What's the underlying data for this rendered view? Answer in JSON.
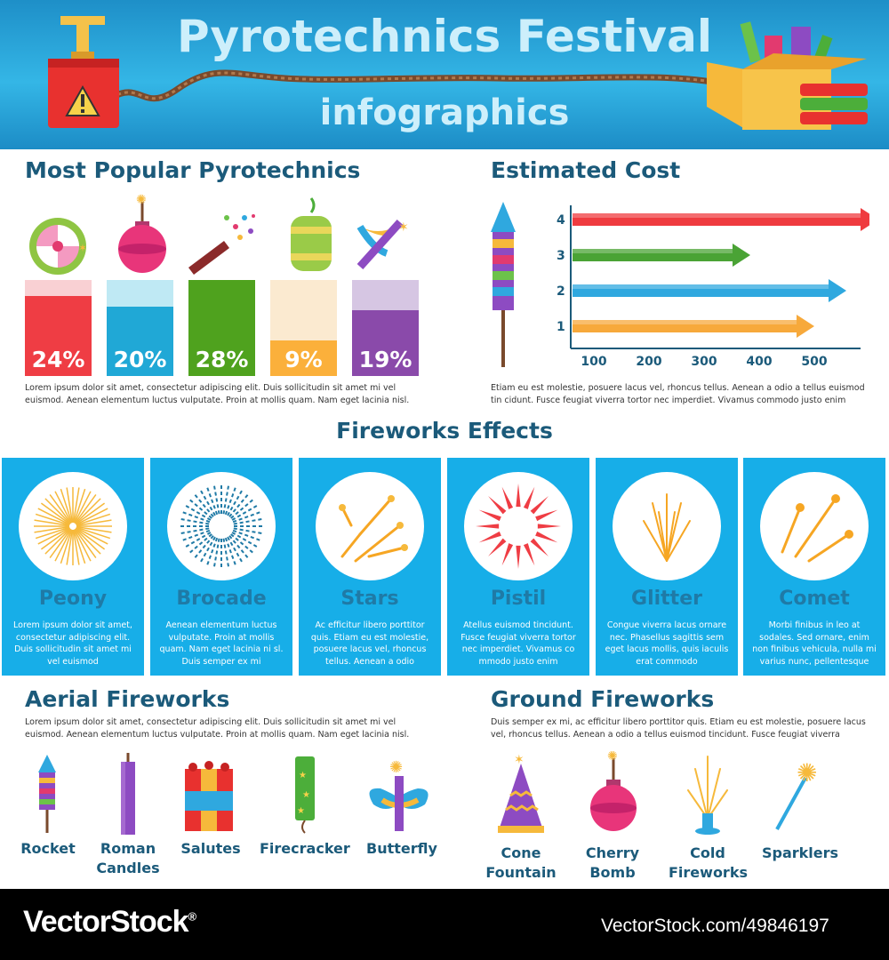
{
  "header": {
    "title": "Pyrotechnics Festival",
    "subtitle": "infographics"
  },
  "popular": {
    "heading": "Most Popular Pyrotechnics",
    "items": [
      {
        "pct": "24%",
        "value": 24,
        "top_color": "#f9d0d3",
        "bottom_color": "#ef3d44"
      },
      {
        "pct": "20%",
        "value": 20,
        "top_color": "#bfe9f4",
        "bottom_color": "#20a8d6"
      },
      {
        "pct": "28%",
        "value": 28,
        "top_color": "#4fa21e",
        "bottom_color": "#4fa21e"
      },
      {
        "pct": "9%",
        "value": 9,
        "top_color": "#fbead0",
        "bottom_color": "#fbb03b"
      },
      {
        "pct": "19%",
        "value": 19,
        "top_color": "#d6c6e3",
        "bottom_color": "#8a4aaa"
      }
    ],
    "text": "Lorem ipsum dolor sit amet, consectetur adipiscing elit. Duis sollicitudin sit amet mi vel euismod. Aenean elementum luctus vulputate. Proin at mollis quam. Nam eget lacinia nisl."
  },
  "cost": {
    "heading": "Estimated Cost",
    "text": "Etiam eu est molestie, posuere lacus vel, rhoncus tellus. Aenean a odio a tellus euismod tin cidunt. Fusce feugiat viverra tortor nec imperdiet. Vivamus commodo justo enim"
  },
  "chart_data": {
    "type": "bar",
    "orientation": "horizontal",
    "categories": [
      "1",
      "2",
      "3",
      "4"
    ],
    "values": [
      450,
      510,
      330,
      570
    ],
    "colors": [
      "#f7a93b",
      "#2fa8df",
      "#4aa335",
      "#ef3b3f"
    ],
    "x_ticks": [
      "100",
      "200",
      "300",
      "400",
      "500"
    ],
    "xlim": [
      0,
      600
    ]
  },
  "effects": {
    "heading": "Fireworks Effects",
    "items": [
      {
        "name": "Peony",
        "text": "Lorem ipsum dolor sit amet, consectetur adipiscing elit. Duis sollicitudin sit amet mi vel euismod"
      },
      {
        "name": "Brocade",
        "text": "Aenean elementum luctus vulputate. Proin at mollis quam. Nam eget lacinia ni sl. Duis semper ex mi"
      },
      {
        "name": "Stars",
        "text": "Ac efficitur libero porttitor quis. Etiam eu est molestie, posuere lacus vel, rhoncus tellus. Aenean a odio"
      },
      {
        "name": "Pistil",
        "text": "Atellus euismod tincidunt. Fusce feugiat viverra tortor nec imperdiet. Vivamus co mmodo justo enim"
      },
      {
        "name": "Glitter",
        "text": "Congue viverra lacus ornare nec. Phasellus sagittis sem eget lacus mollis, quis iaculis erat commodo"
      },
      {
        "name": "Comet",
        "text": "Morbi finibus in leo at sodales. Sed ornare, enim non finibus vehicula, nulla mi varius nunc, pellentesque"
      }
    ]
  },
  "aerial": {
    "heading": "Aerial Fireworks",
    "text": "Lorem ipsum dolor sit amet, consectetur adipiscing elit. Duis sollicitudin sit amet mi vel euismod. Aenean elementum luctus vulputate. Proin at mollis quam. Nam eget lacinia nisl.",
    "items": [
      "Rocket",
      "Roman Candles",
      "Salutes",
      "Firecracker",
      "Butterfly"
    ]
  },
  "ground": {
    "heading": "Ground Fireworks",
    "text": "Duis semper ex mi,  ac efficitur libero porttitor quis. Etiam eu est molestie, posuere lacus vel, rhoncus tellus. Aenean a odio a tellus euismod tincidunt. Fusce feugiat viverra",
    "items": [
      "Cone Fountain",
      "Cherry Bomb",
      "Cold Fireworks",
      "Sparklers"
    ]
  },
  "footer": {
    "brand": "VectorStock",
    "brand_mark": "®",
    "image_id": "VectorStock.com/49846197"
  }
}
